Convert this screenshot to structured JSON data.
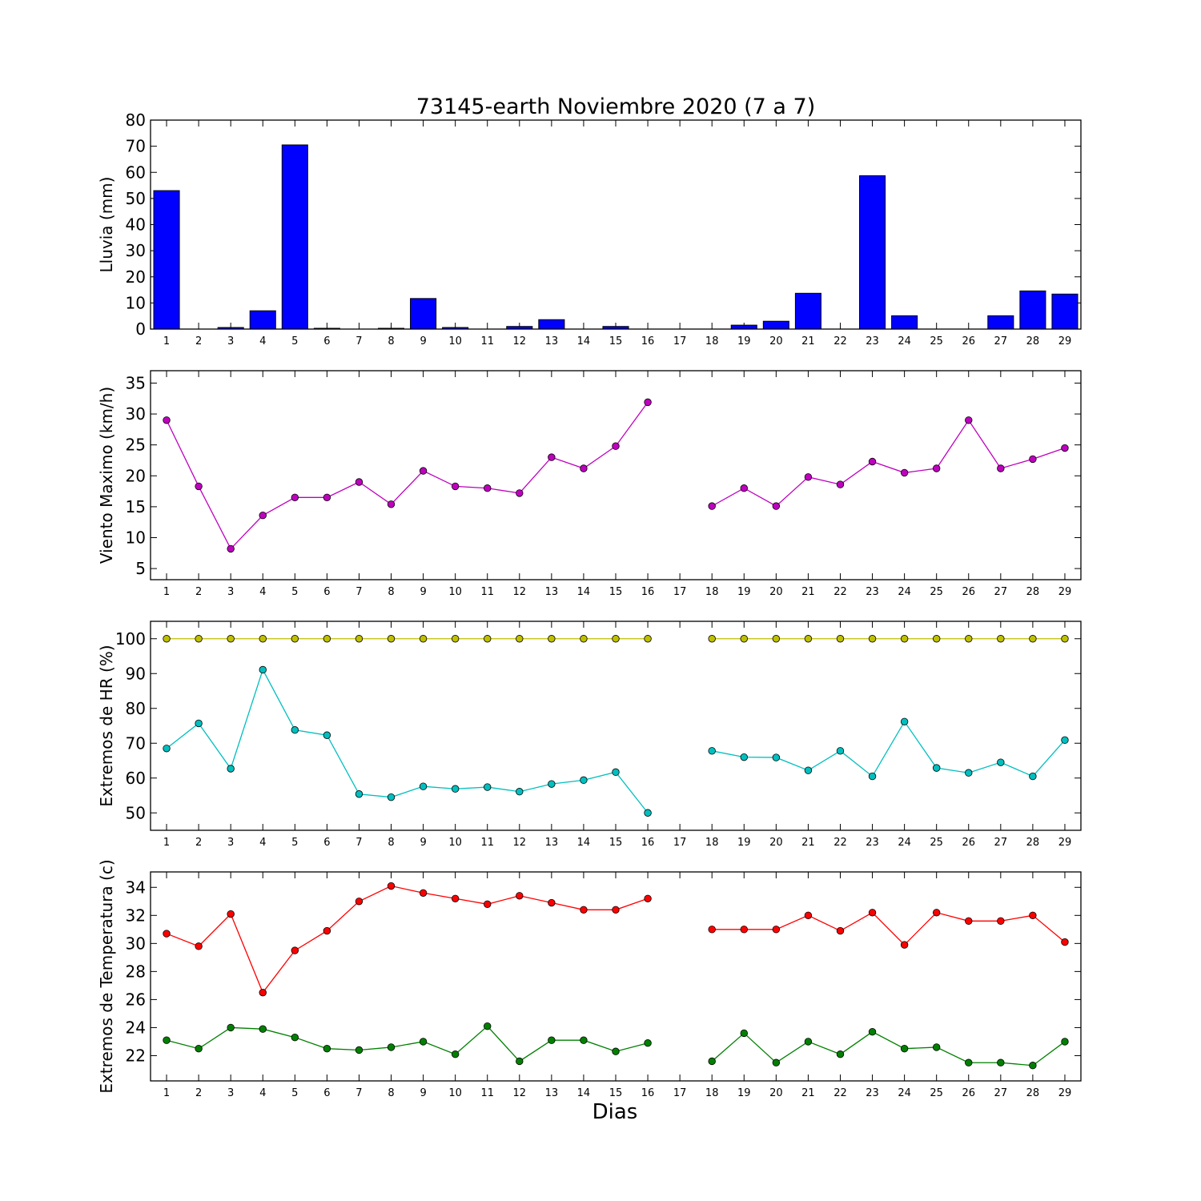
{
  "figure": {
    "title": "73145-earth Noviembre 2020  (7 a 7)",
    "xlabel": "Dias"
  },
  "chart_data": [
    {
      "type": "bar",
      "ylabel": "Lluvia (mm)",
      "ylim": [
        0,
        80
      ],
      "yticks": [
        0,
        10,
        20,
        30,
        40,
        50,
        60,
        70,
        80
      ],
      "categories": [
        1,
        2,
        3,
        4,
        5,
        6,
        7,
        8,
        9,
        10,
        11,
        12,
        13,
        14,
        15,
        16,
        17,
        18,
        19,
        20,
        21,
        22,
        23,
        24,
        25,
        26,
        27,
        28,
        29
      ],
      "series": [
        {
          "color": "#0000ff",
          "values": [
            53,
            0,
            0.6,
            7,
            70.5,
            0.3,
            0,
            0.3,
            11.7,
            0.6,
            0,
            1,
            3.6,
            0,
            1,
            0,
            0,
            0,
            1.5,
            3,
            13.7,
            0,
            58.7,
            5.1,
            0,
            0,
            5.1,
            14.6,
            13.4
          ]
        }
      ]
    },
    {
      "type": "line",
      "ylabel": "Viento Maximo (km/h)",
      "ylim": [
        3.2,
        37
      ],
      "yticks": [
        5,
        10,
        15,
        20,
        25,
        30,
        35
      ],
      "x": [
        1,
        2,
        3,
        4,
        5,
        6,
        7,
        8,
        9,
        10,
        11,
        12,
        13,
        14,
        15,
        16,
        17,
        18,
        19,
        20,
        21,
        22,
        23,
        24,
        25,
        26,
        27,
        28,
        29
      ],
      "series": [
        {
          "color": "#bf00bf",
          "values": [
            29,
            18.3,
            8.2,
            13.6,
            16.5,
            16.5,
            19,
            15.4,
            20.8,
            18.3,
            18,
            17.2,
            23,
            21.2,
            24.8,
            31.9,
            null,
            15.1,
            18,
            15.1,
            19.8,
            18.6,
            22.3,
            20.5,
            21.2,
            29,
            21.2,
            22.7,
            24.5
          ]
        }
      ]
    },
    {
      "type": "line",
      "ylabel": "Extremos de HR (%)",
      "ylim": [
        45,
        105
      ],
      "yticks": [
        50,
        60,
        70,
        80,
        90,
        100
      ],
      "x": [
        1,
        2,
        3,
        4,
        5,
        6,
        7,
        8,
        9,
        10,
        11,
        12,
        13,
        14,
        15,
        16,
        17,
        18,
        19,
        20,
        21,
        22,
        23,
        24,
        25,
        26,
        27,
        28,
        29
      ],
      "series": [
        {
          "color": "#bfbf00",
          "values": [
            100,
            100,
            100,
            100,
            100,
            100,
            100,
            100,
            100,
            100,
            100,
            100,
            100,
            100,
            100,
            100,
            null,
            100,
            100,
            100,
            100,
            100,
            100,
            100,
            100,
            100,
            100,
            100,
            100
          ]
        },
        {
          "color": "#00bfbf",
          "values": [
            68.5,
            75.7,
            62.7,
            91.1,
            73.8,
            72.3,
            55.4,
            54.5,
            57.6,
            56.9,
            57.4,
            56.1,
            58.3,
            59.4,
            61.7,
            50,
            null,
            67.8,
            66,
            65.9,
            62.2,
            67.8,
            60.5,
            76.2,
            62.9,
            61.5,
            64.5,
            60.5,
            70.9
          ]
        }
      ]
    },
    {
      "type": "line",
      "ylabel": "Extremos de Temperatura (c)",
      "ylim": [
        20.2,
        35.1
      ],
      "yticks": [
        22,
        24,
        26,
        28,
        30,
        32,
        34
      ],
      "x": [
        1,
        2,
        3,
        4,
        5,
        6,
        7,
        8,
        9,
        10,
        11,
        12,
        13,
        14,
        15,
        16,
        17,
        18,
        19,
        20,
        21,
        22,
        23,
        24,
        25,
        26,
        27,
        28,
        29
      ],
      "series": [
        {
          "color": "#ff0000",
          "values": [
            30.7,
            29.8,
            32.1,
            26.5,
            29.5,
            30.9,
            33,
            34.1,
            33.6,
            33.2,
            32.8,
            33.4,
            32.9,
            32.4,
            32.4,
            33.2,
            null,
            31,
            31,
            31,
            32,
            30.9,
            32.2,
            29.9,
            32.2,
            31.6,
            31.6,
            32,
            30.1
          ]
        },
        {
          "color": "#008000",
          "values": [
            23.1,
            22.5,
            24,
            23.9,
            23.3,
            22.5,
            22.4,
            22.6,
            23,
            22.1,
            24.1,
            21.6,
            23.1,
            23.1,
            22.3,
            22.9,
            null,
            21.6,
            23.6,
            21.5,
            23,
            22.1,
            23.7,
            22.5,
            22.6,
            21.5,
            21.5,
            21.3,
            23
          ]
        }
      ]
    }
  ]
}
